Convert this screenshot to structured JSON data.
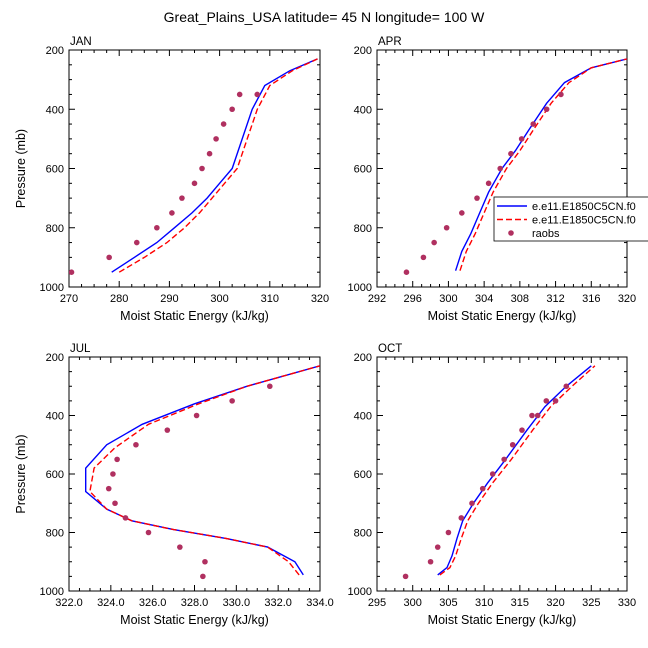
{
  "title": "Great_Plains_USA  latitude= 45 N longitude= 100 W",
  "legend": {
    "entries": [
      {
        "label": "e.e11.E1850C5CN.f0",
        "style": "solid",
        "color": "#0000ff"
      },
      {
        "label": "e.e11.E1850C5CN.f0",
        "style": "dashed",
        "color": "#ff0000"
      },
      {
        "label": "raobs",
        "style": "marker",
        "color": "#b03060"
      }
    ]
  },
  "chart_data": [
    {
      "type": "line",
      "title": "JAN",
      "xlabel": "Moist Static Energy (kJ/kg)",
      "ylabel": "Pressure (mb)",
      "xlim": [
        270,
        320
      ],
      "ylim": [
        1000,
        200
      ],
      "xticks": [
        270,
        280,
        290,
        300,
        310,
        320
      ],
      "xtick_labels": [
        "270",
        "280",
        "290",
        "300",
        "310",
        "320"
      ],
      "yticks": [
        200,
        400,
        600,
        800,
        1000
      ],
      "ytick_labels": [
        "200",
        "400",
        "600",
        "800",
        "1000"
      ],
      "series": [
        {
          "name": "e.e11.E1850C5CN.f0 (solid)",
          "color": "#0000ff",
          "style": "solid",
          "x": [
            278.5,
            283,
            287.5,
            291,
            294.5,
            297.5,
            300,
            302.5,
            304.5,
            306.5,
            309,
            314,
            319.5
          ],
          "y": [
            950,
            900,
            850,
            800,
            750,
            700,
            650,
            600,
            500,
            400,
            320,
            270,
            230
          ]
        },
        {
          "name": "e.e11.E1850C5CN.f0 (dashed)",
          "color": "#ff0000",
          "style": "dashed",
          "x": [
            280,
            285,
            289.5,
            293,
            296,
            298.5,
            301,
            303.5,
            305.5,
            307.5,
            310,
            314.5,
            319.5
          ],
          "y": [
            950,
            900,
            850,
            800,
            750,
            700,
            650,
            600,
            500,
            400,
            320,
            270,
            230
          ]
        },
        {
          "name": "raobs",
          "color": "#b03060",
          "style": "marker",
          "x": [
            270.5,
            278,
            283.5,
            287.5,
            290.5,
            292.5,
            295,
            296.5,
            298,
            299.3,
            300.8,
            302.5,
            304,
            307.5
          ],
          "y": [
            950,
            900,
            850,
            800,
            750,
            700,
            650,
            600,
            550,
            500,
            450,
            400,
            350,
            350
          ]
        }
      ]
    },
    {
      "type": "line",
      "title": "APR",
      "xlabel": "Moist Static Energy (kJ/kg)",
      "ylabel": "",
      "xlim": [
        292,
        320
      ],
      "ylim": [
        1000,
        200
      ],
      "xticks": [
        292,
        296,
        300,
        304,
        308,
        312,
        316,
        320
      ],
      "xtick_labels": [
        "292",
        "296",
        "300",
        "304",
        "308",
        "312",
        "316",
        "320"
      ],
      "yticks": [
        200,
        400,
        600,
        800,
        1000
      ],
      "ytick_labels": [
        "200",
        "400",
        "600",
        "800",
        "1000"
      ],
      "series": [
        {
          "name": "e.e11.E1850C5CN.f0 (solid)",
          "color": "#0000ff",
          "style": "solid",
          "x": [
            300.8,
            301.5,
            302.5,
            303.5,
            304.5,
            306,
            307.5,
            309,
            311,
            313,
            316,
            320
          ],
          "y": [
            945,
            880,
            820,
            750,
            680,
            600,
            540,
            470,
            380,
            310,
            260,
            230
          ]
        },
        {
          "name": "e.e11.E1850C5CN.f0 (dashed)",
          "color": "#ff0000",
          "style": "dashed",
          "x": [
            301.3,
            302,
            303,
            304,
            305,
            306.5,
            308,
            309.5,
            311.5,
            313.5,
            316,
            320
          ],
          "y": [
            945,
            880,
            820,
            750,
            680,
            600,
            540,
            470,
            380,
            310,
            260,
            230
          ]
        },
        {
          "name": "raobs",
          "color": "#b03060",
          "style": "marker",
          "x": [
            295.3,
            297.2,
            298.4,
            299.8,
            301.5,
            303.2,
            304.5,
            305.8,
            307,
            308.2,
            309.5,
            311,
            312.6
          ],
          "y": [
            950,
            900,
            850,
            800,
            750,
            700,
            650,
            600,
            550,
            500,
            450,
            400,
            350
          ]
        }
      ]
    },
    {
      "type": "line",
      "title": "JUL",
      "xlabel": "Moist Static Energy (kJ/kg)",
      "ylabel": "Pressure (mb)",
      "xlim": [
        322,
        334
      ],
      "ylim": [
        1000,
        200
      ],
      "xticks": [
        322,
        324,
        326,
        328,
        330,
        332,
        334
      ],
      "xtick_labels": [
        "322.0",
        "324.0",
        "326.0",
        "328.0",
        "330.0",
        "332.0",
        "334.0"
      ],
      "yticks": [
        200,
        400,
        600,
        800,
        1000
      ],
      "ytick_labels": [
        "200",
        "400",
        "600",
        "800",
        "1000"
      ],
      "series": [
        {
          "name": "e.e11.E1850C5CN.f0 (solid)",
          "color": "#0000ff",
          "style": "solid",
          "x": [
            333.2,
            332.8,
            331.5,
            329.5,
            327,
            325,
            323.8,
            322.8,
            322.8,
            323.8,
            325.5,
            328,
            330.5,
            334
          ],
          "y": [
            945,
            900,
            850,
            820,
            790,
            760,
            720,
            660,
            580,
            500,
            430,
            360,
            300,
            230
          ]
        },
        {
          "name": "e.e11.E1850C5CN.f0 (dashed)",
          "color": "#ff0000",
          "style": "dashed",
          "x": [
            333,
            332.5,
            331.5,
            329.5,
            327,
            325,
            323.8,
            323,
            323.2,
            324.2,
            325.8,
            328.2,
            330.5,
            334
          ],
          "y": [
            945,
            900,
            850,
            820,
            790,
            760,
            720,
            660,
            580,
            510,
            430,
            360,
            300,
            230
          ]
        },
        {
          "name": "raobs",
          "color": "#b03060",
          "style": "marker",
          "x": [
            328.4,
            328.5,
            327.3,
            325.8,
            324.7,
            324.2,
            323.9,
            324.1,
            324.3,
            325.2,
            326.7,
            328.1,
            329.8,
            331.6
          ],
          "y": [
            950,
            900,
            850,
            800,
            750,
            700,
            650,
            600,
            550,
            500,
            450,
            400,
            350,
            300
          ]
        }
      ]
    },
    {
      "type": "line",
      "title": "OCT",
      "xlabel": "Moist Static Energy (kJ/kg)",
      "ylabel": "",
      "xlim": [
        295,
        330
      ],
      "ylim": [
        1000,
        200
      ],
      "xticks": [
        295,
        300,
        305,
        310,
        315,
        320,
        325,
        330
      ],
      "xtick_labels": [
        "295",
        "300",
        "305",
        "310",
        "315",
        "320",
        "325",
        "330"
      ],
      "yticks": [
        200,
        400,
        600,
        800,
        1000
      ],
      "ytick_labels": [
        "200",
        "400",
        "600",
        "800",
        "1000"
      ],
      "series": [
        {
          "name": "e.e11.E1850C5CN.f0 (solid)",
          "color": "#0000ff",
          "style": "solid",
          "x": [
            303.5,
            304.8,
            305.5,
            306.2,
            307,
            308.5,
            310.5,
            313,
            316,
            318.5,
            321.5,
            325
          ],
          "y": [
            945,
            920,
            880,
            820,
            760,
            700,
            630,
            550,
            450,
            370,
            300,
            230
          ]
        },
        {
          "name": "e.e11.E1850C5CN.f0 (dashed)",
          "color": "#ff0000",
          "style": "dashed",
          "x": [
            303.8,
            305.2,
            306,
            306.8,
            307.7,
            309.2,
            311.2,
            313.8,
            316.8,
            319.3,
            322.3,
            325.5
          ],
          "y": [
            945,
            920,
            880,
            820,
            760,
            700,
            630,
            550,
            450,
            370,
            300,
            230
          ]
        },
        {
          "name": "raobs",
          "color": "#b03060",
          "style": "marker",
          "x": [
            299,
            302.5,
            303.5,
            305,
            306.8,
            308.3,
            309.8,
            311.2,
            312.8,
            314,
            315.3,
            316.7,
            317.5,
            318.7,
            320,
            321.5
          ],
          "y": [
            950,
            900,
            850,
            800,
            750,
            700,
            650,
            600,
            550,
            500,
            450,
            400,
            400,
            350,
            350,
            300
          ]
        }
      ]
    }
  ]
}
